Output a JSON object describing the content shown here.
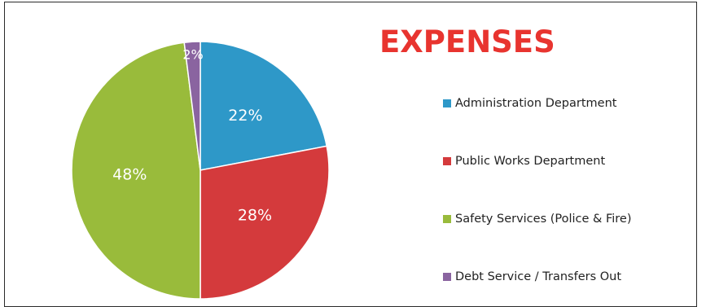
{
  "chart_data": {
    "type": "pie",
    "title": "EXPENSES",
    "legend_position": "right",
    "series": [
      {
        "name": "Administration Department",
        "value": 22,
        "label": "22%",
        "color": "#2e98c8"
      },
      {
        "name": "Public Works Department",
        "value": 28,
        "label": "28%",
        "color": "#d43a3c"
      },
      {
        "name": "Safety Services (Police & Fire)",
        "value": 48,
        "label": "48%",
        "color": "#99bb3b"
      },
      {
        "name": "Debt Service / Transfers Out",
        "value": 2,
        "label": "2%",
        "color": "#8a64a0"
      }
    ]
  }
}
